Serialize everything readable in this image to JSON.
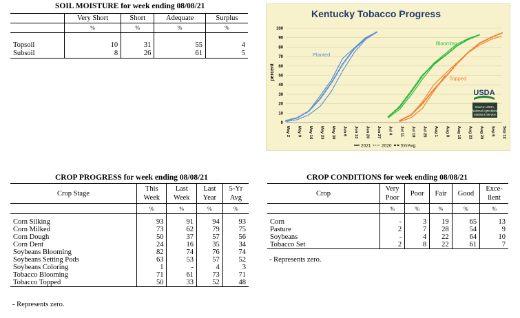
{
  "soil_moisture": {
    "title": "SOIL MOISTURE for week ending 08/08/21",
    "columns": [
      "Very Short",
      "Short",
      "Adequate",
      "Surplus"
    ],
    "unit": "%",
    "rows": [
      {
        "label": "Topsoil",
        "values": [
          "10",
          "31",
          "55",
          "4"
        ]
      },
      {
        "label": "Subsoil",
        "values": [
          "8",
          "26",
          "61",
          "5"
        ]
      }
    ]
  },
  "crop_progress": {
    "title": "CROP PROGRESS for week ending 08/08/21",
    "col_stage": "Crop Stage",
    "columns": [
      [
        "This",
        "Week"
      ],
      [
        "Last",
        "Week"
      ],
      [
        "Last",
        "Year"
      ],
      [
        "5-Yr",
        "Avg"
      ]
    ],
    "unit": "%",
    "rows": [
      {
        "label": "Corn Silking",
        "values": [
          "93",
          "91",
          "94",
          "93"
        ]
      },
      {
        "label": "Corn Milked",
        "values": [
          "73",
          "62",
          "79",
          "75"
        ]
      },
      {
        "label": "Corn Dough",
        "values": [
          "50",
          "37",
          "57",
          "56"
        ]
      },
      {
        "label": "Corn Dent",
        "values": [
          "24",
          "16",
          "35",
          "34"
        ]
      },
      {
        "label": "Soybeans Blooming",
        "values": [
          "82",
          "74",
          "76",
          "74"
        ]
      },
      {
        "label": "Soybeans Setting Pods",
        "values": [
          "63",
          "53",
          "57",
          "52"
        ]
      },
      {
        "label": "Soybeans Coloring",
        "values": [
          "1",
          "-",
          "4",
          "3"
        ]
      },
      {
        "label": "Tobacco Blooming",
        "values": [
          "71",
          "61",
          "73",
          "71"
        ]
      },
      {
        "label": "Tobacco Topped",
        "values": [
          "50",
          "33",
          "52",
          "48"
        ]
      }
    ],
    "note": "- Represents zero."
  },
  "crop_conditions": {
    "title": "CROP CONDITIONS for week ending 08/08/21",
    "col_crop": "Crop",
    "columns": [
      [
        "Very",
        "Poor"
      ],
      [
        "Poor"
      ],
      [
        "Fair"
      ],
      [
        "Good"
      ],
      [
        "Exce-",
        "llent"
      ]
    ],
    "unit": "%",
    "rows": [
      {
        "label": "Corn",
        "values": [
          "-",
          "3",
          "19",
          "65",
          "13"
        ]
      },
      {
        "label": "Pasture",
        "values": [
          "2",
          "7",
          "28",
          "54",
          "9"
        ]
      },
      {
        "label": "Soybeans",
        "values": [
          "-",
          "4",
          "22",
          "64",
          "10"
        ]
      },
      {
        "label": "Tobacco Set",
        "values": [
          "2",
          "8",
          "22",
          "61",
          "7"
        ]
      }
    ],
    "note": "- Represents zero."
  },
  "chart_data": {
    "type": "line",
    "title": "Kentucky Tobacco Progress",
    "ylabel": "percent",
    "ylim": [
      0,
      100
    ],
    "yticks": [
      0,
      10,
      20,
      30,
      40,
      50,
      60,
      70,
      80,
      90,
      100
    ],
    "categories": [
      "May 2",
      "May 9",
      "May 16",
      "May 23",
      "May 30",
      "Jun 6",
      "Jun 13",
      "Jun 20",
      "Jun 27",
      "Jul 4",
      "Jul 11",
      "Jul 18",
      "Jul 25",
      "Aug 1",
      "Aug 8",
      "Aug 15",
      "Aug 22",
      "Aug 29",
      "Sep 5",
      "Sep 12"
    ],
    "legend": [
      "2021",
      "2020",
      "5YrAvg"
    ],
    "legend_position": "bottom",
    "background": "#f5f0c8",
    "source_note": [
      "Source: USDA,",
      "National Agricultural",
      "Statistics Service"
    ],
    "logo_text": "USDA",
    "groups": [
      {
        "label": "Planted",
        "color": "#5b8fd6",
        "series": [
          {
            "name": "2021",
            "x": [
              "May 2",
              "May 9",
              "May 16",
              "May 23",
              "May 30",
              "Jun 6",
              "Jun 13",
              "Jun 20",
              "Jun 27"
            ],
            "values": [
              2,
              5,
              12,
              28,
              45,
              68,
              79,
              90,
              96
            ]
          },
          {
            "name": "2020",
            "x": [
              "May 2",
              "May 9",
              "May 16",
              "May 23",
              "May 30",
              "Jun 6",
              "Jun 13",
              "Jun 20",
              "Jun 27"
            ],
            "values": [
              1,
              3,
              8,
              17,
              33,
              55,
              74,
              88,
              96
            ]
          },
          {
            "name": "5YrAvg",
            "x": [
              "May 2",
              "May 9",
              "May 16",
              "May 23",
              "May 30",
              "Jun 6",
              "Jun 13",
              "Jun 20",
              "Jun 27"
            ],
            "values": [
              2,
              5,
              12,
              25,
              42,
              62,
              78,
              89,
              96
            ]
          }
        ]
      },
      {
        "label": "Blooming",
        "color": "#2db83d",
        "series": [
          {
            "name": "2021",
            "x": [
              "Jul 4",
              "Jul 11",
              "Jul 18",
              "Jul 25",
              "Aug 1",
              "Aug 8"
            ],
            "values": [
              5,
              14,
              29,
              46,
              61,
              71
            ]
          },
          {
            "name": "2020",
            "x": [
              "Jul 4",
              "Jul 11",
              "Jul 18",
              "Jul 25",
              "Aug 1",
              "Aug 8",
              "Aug 15",
              "Aug 22",
              "Aug 29"
            ],
            "values": [
              6,
              16,
              32,
              49,
              63,
              73,
              83,
              89,
              93
            ]
          },
          {
            "name": "5YrAvg",
            "x": [
              "Jul 4",
              "Jul 11",
              "Jul 18",
              "Jul 25",
              "Aug 1",
              "Aug 8",
              "Aug 15",
              "Aug 22",
              "Aug 29"
            ],
            "values": [
              6,
              17,
              33,
              50,
              62,
              71,
              81,
              88,
              93
            ]
          }
        ]
      },
      {
        "label": "Topped",
        "color": "#f07f2d",
        "series": [
          {
            "name": "2021",
            "x": [
              "Jul 11",
              "Jul 18",
              "Jul 25",
              "Aug 1",
              "Aug 8"
            ],
            "values": [
              1,
              5,
              15,
              33,
              50
            ]
          },
          {
            "name": "2020",
            "x": [
              "Jul 11",
              "Jul 18",
              "Jul 25",
              "Aug 1",
              "Aug 8",
              "Aug 15",
              "Aug 22",
              "Aug 29",
              "Sep 5",
              "Sep 12"
            ],
            "values": [
              2,
              8,
              22,
              40,
              52,
              63,
              74,
              82,
              88,
              92
            ]
          },
          {
            "name": "5YrAvg",
            "x": [
              "Jul 11",
              "Jul 18",
              "Jul 25",
              "Aug 1",
              "Aug 8",
              "Aug 15",
              "Aug 22",
              "Aug 29",
              "Sep 5",
              "Sep 12"
            ],
            "values": [
              2,
              8,
              20,
              35,
              48,
              62,
              74,
              84,
              90,
              95
            ]
          }
        ]
      }
    ]
  }
}
